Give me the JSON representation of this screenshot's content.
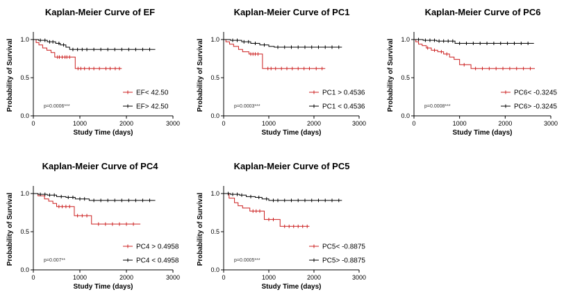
{
  "colors": {
    "red": "#cc1f1f",
    "black": "#000000"
  },
  "chart_data": [
    {
      "type": "line",
      "title": "Kaplan-Meier Curve of EF",
      "xlabel": "Study Time (days)",
      "ylabel": "Probability of Survival",
      "xlim": [
        0,
        3000
      ],
      "ylim": [
        0,
        1.0
      ],
      "xticks": [
        "0",
        "1000",
        "2000",
        "3000"
      ],
      "yticks": [
        "0.0",
        "0.5",
        "1.0"
      ],
      "pvalue": "p=0.0006***",
      "legend_position": "bottom-right",
      "series": [
        {
          "name": "EF< 42.50",
          "color": "#cc1f1f",
          "x": [
            0,
            60,
            120,
            200,
            290,
            380,
            460,
            600,
            700,
            900,
            1900
          ],
          "y": [
            1.0,
            0.96,
            0.93,
            0.89,
            0.86,
            0.83,
            0.77,
            0.77,
            0.77,
            0.62,
            0.62
          ],
          "censor_x": [
            520,
            560,
            620,
            680,
            720,
            780,
            960,
            1020,
            1100,
            1200,
            1300,
            1420,
            1560,
            1650,
            1760,
            1850
          ]
        },
        {
          "name": "EF> 42.50",
          "color": "#000000",
          "x": [
            0,
            110,
            300,
            480,
            580,
            700,
            780,
            2620
          ],
          "y": [
            1.0,
            0.99,
            0.97,
            0.95,
            0.93,
            0.9,
            0.87,
            0.87
          ],
          "censor_x": [
            150,
            250,
            350,
            420,
            550,
            650,
            850,
            950,
            1050,
            1150,
            1300,
            1450,
            1600,
            1750,
            1900,
            2050,
            2200,
            2350,
            2500
          ]
        }
      ]
    },
    {
      "type": "line",
      "title": "Kaplan-Meier Curve of PC1",
      "xlabel": "Study Time (days)",
      "ylabel": "Probability of Survival",
      "xlim": [
        0,
        3000
      ],
      "ylim": [
        0,
        1.0
      ],
      "xticks": [
        "0",
        "1000",
        "2000",
        "3000"
      ],
      "yticks": [
        "0.0",
        "0.5",
        "1.0"
      ],
      "pvalue": "p=0.0003***",
      "legend_position": "bottom-right",
      "series": [
        {
          "name": "PC1 > 0.4536",
          "color": "#cc1f1f",
          "x": [
            0,
            50,
            130,
            220,
            330,
            420,
            560,
            860,
            2250
          ],
          "y": [
            1.0,
            0.97,
            0.94,
            0.91,
            0.87,
            0.84,
            0.81,
            0.62,
            0.62
          ],
          "censor_x": [
            600,
            650,
            700,
            760,
            980,
            1050,
            1150,
            1280,
            1400,
            1520,
            1650,
            1780,
            1900,
            2050,
            2180
          ]
        },
        {
          "name": "PC1 < 0.4536",
          "color": "#000000",
          "x": [
            0,
            150,
            400,
            600,
            800,
            1000,
            1120,
            2620
          ],
          "y": [
            1.0,
            0.99,
            0.97,
            0.95,
            0.93,
            0.91,
            0.9,
            0.9
          ],
          "censor_x": [
            200,
            300,
            450,
            550,
            700,
            900,
            1200,
            1350,
            1500,
            1650,
            1800,
            1950,
            2100,
            2250,
            2400,
            2550
          ]
        }
      ]
    },
    {
      "type": "line",
      "title": "Kaplan-Meier Curve of PC6",
      "xlabel": "Study Time (days)",
      "ylabel": "Probability of Survival",
      "xlim": [
        0,
        3000
      ],
      "ylim": [
        0,
        1.0
      ],
      "xticks": [
        "0",
        "1000",
        "2000",
        "3000"
      ],
      "yticks": [
        "0.0",
        "0.5",
        "1.0"
      ],
      "pvalue": "p=0.0008***",
      "legend_position": "bottom-right",
      "series": [
        {
          "name": "PC6< -0.3245",
          "color": "#cc1f1f",
          "x": [
            0,
            40,
            100,
            180,
            270,
            380,
            520,
            650,
            780,
            880,
            1000,
            1250,
            2650
          ],
          "y": [
            1.0,
            0.97,
            0.94,
            0.92,
            0.89,
            0.86,
            0.84,
            0.81,
            0.77,
            0.74,
            0.67,
            0.62,
            0.62
          ],
          "censor_x": [
            300,
            450,
            600,
            720,
            1100,
            1350,
            1500,
            1650,
            1800,
            1950,
            2100,
            2250,
            2400,
            2550
          ]
        },
        {
          "name": "PC6> -0.3245",
          "color": "#000000",
          "x": [
            0,
            200,
            500,
            900,
            2630
          ],
          "y": [
            1.0,
            0.99,
            0.98,
            0.95,
            0.95
          ],
          "censor_x": [
            100,
            250,
            350,
            450,
            550,
            650,
            750,
            850,
            1000,
            1150,
            1300,
            1450,
            1600,
            1750,
            1900,
            2050,
            2200,
            2350,
            2500
          ]
        }
      ]
    },
    {
      "type": "line",
      "title": "Kaplan-Meier Curve of PC4",
      "xlabel": "Study Time (days)",
      "ylabel": "Probability of Survival",
      "xlim": [
        0,
        3000
      ],
      "ylim": [
        0,
        1.0
      ],
      "xticks": [
        "0",
        "1000",
        "2000",
        "3000"
      ],
      "yticks": [
        "0.0",
        "0.5",
        "1.0"
      ],
      "pvalue": "p=0.007**",
      "legend_position": "bottom-right",
      "series": [
        {
          "name": "PC4 > 0.4958",
          "color": "#cc1f1f",
          "x": [
            0,
            100,
            240,
            330,
            420,
            500,
            880,
            1250,
            2300
          ],
          "y": [
            1.0,
            0.97,
            0.93,
            0.9,
            0.87,
            0.83,
            0.71,
            0.6,
            0.6
          ],
          "censor_x": [
            550,
            620,
            700,
            780,
            950,
            1050,
            1150,
            1400,
            1550,
            1700,
            1850,
            2000,
            2150
          ]
        },
        {
          "name": "PC4 < 0.4958",
          "color": "#000000",
          "x": [
            0,
            100,
            300,
            500,
            700,
            900,
            1200,
            2620
          ],
          "y": [
            1.0,
            0.99,
            0.98,
            0.96,
            0.95,
            0.93,
            0.91,
            0.91
          ],
          "censor_x": [
            150,
            250,
            350,
            450,
            600,
            750,
            850,
            1000,
            1100,
            1300,
            1450,
            1600,
            1750,
            1900,
            2050,
            2200,
            2350,
            2500
          ]
        }
      ]
    },
    {
      "type": "line",
      "title": "Kaplan-Meier Curve of PC5",
      "xlabel": "Study Time (days)",
      "ylabel": "Probability of Survival",
      "xlim": [
        0,
        3000
      ],
      "ylim": [
        0,
        1.0
      ],
      "xticks": [
        "0",
        "1000",
        "2000",
        "3000"
      ],
      "yticks": [
        "0.0",
        "0.5",
        "1.0"
      ],
      "pvalue": "p=0.0005***",
      "legend_position": "bottom-right",
      "series": [
        {
          "name": "PC5< -0.8875",
          "color": "#cc1f1f",
          "x": [
            0,
            120,
            240,
            320,
            420,
            580,
            900,
            1250,
            1900
          ],
          "y": [
            1.0,
            0.94,
            0.88,
            0.84,
            0.81,
            0.77,
            0.66,
            0.57,
            0.57
          ],
          "censor_x": [
            650,
            720,
            800,
            1000,
            1100,
            1350,
            1450,
            1550,
            1650,
            1750,
            1850
          ]
        },
        {
          "name": "PC5> -0.8875",
          "color": "#000000",
          "x": [
            0,
            150,
            350,
            500,
            700,
            850,
            1000,
            2620
          ],
          "y": [
            1.0,
            0.99,
            0.98,
            0.96,
            0.95,
            0.93,
            0.91,
            0.91
          ],
          "censor_x": [
            100,
            200,
            300,
            400,
            600,
            780,
            950,
            1100,
            1200,
            1350,
            1500,
            1650,
            1800,
            1950,
            2100,
            2250,
            2400,
            2550
          ]
        }
      ]
    }
  ]
}
